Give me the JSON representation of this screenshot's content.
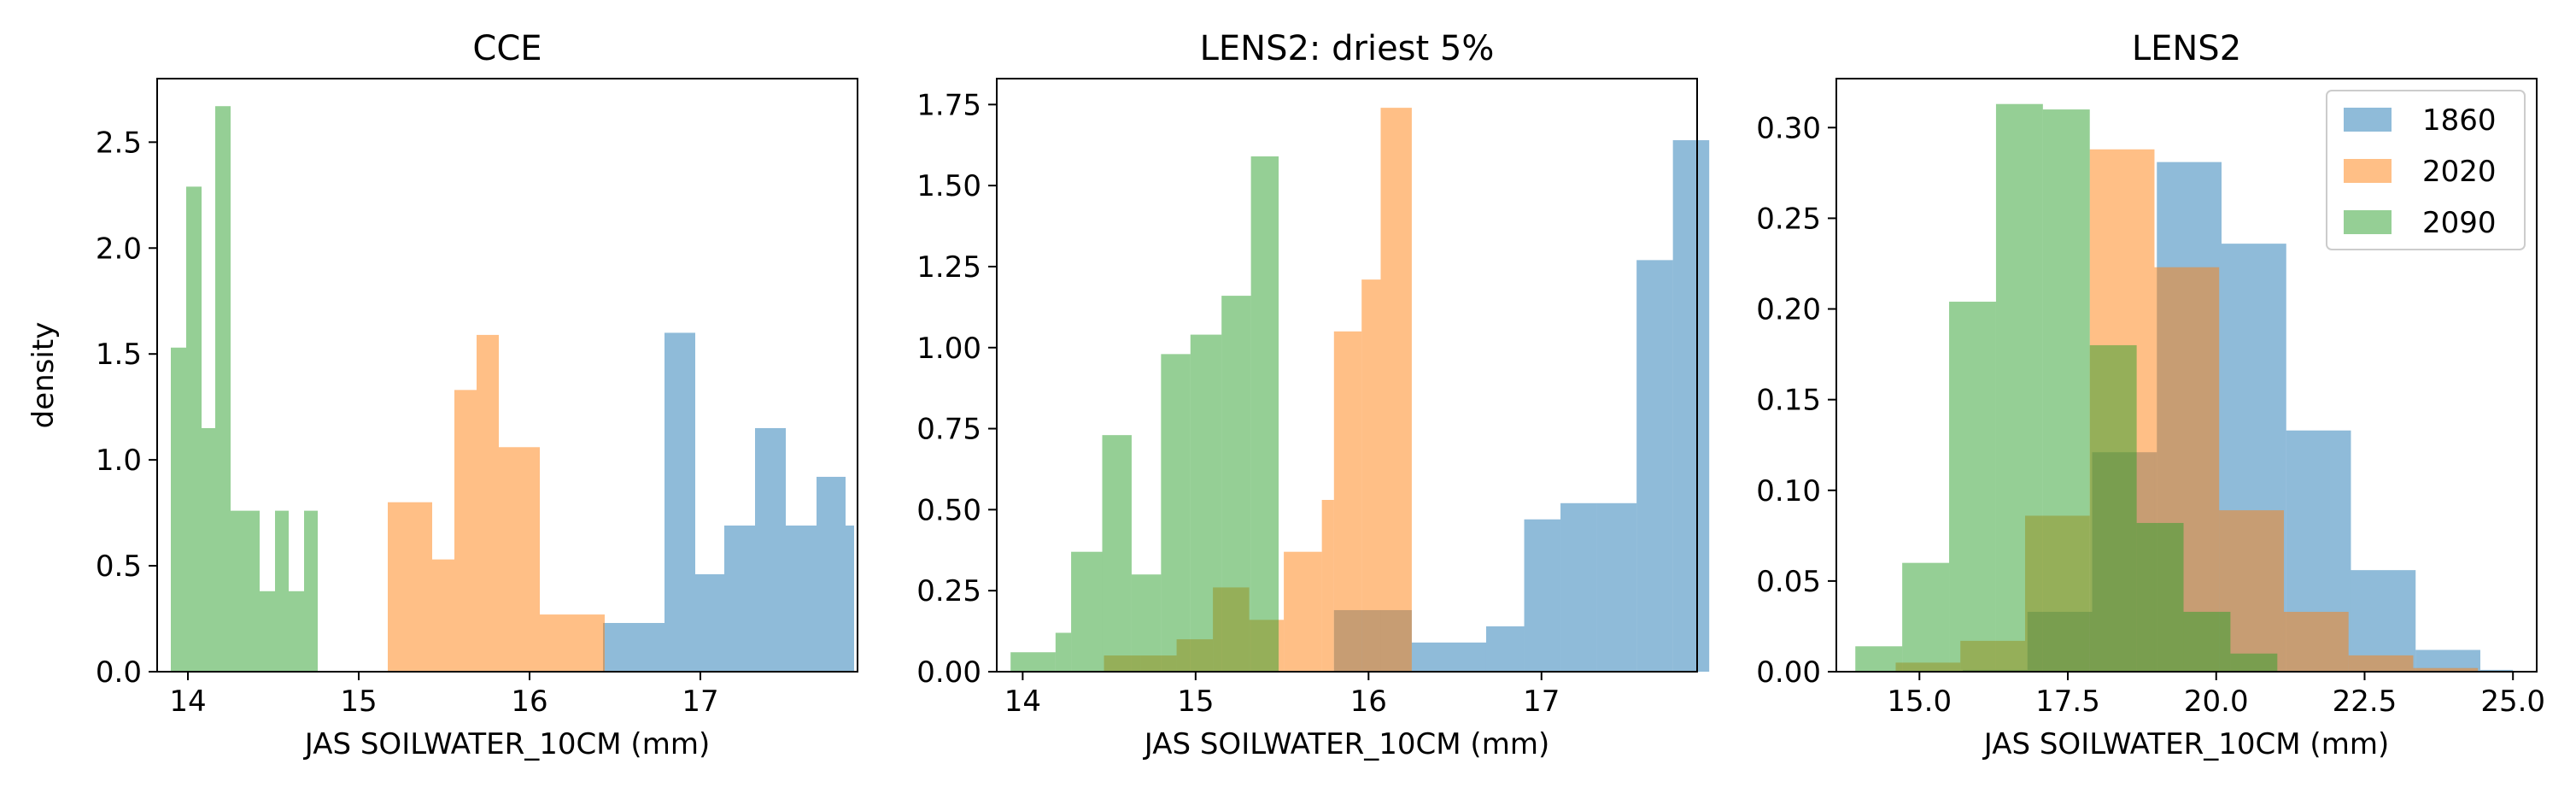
{
  "chart_data": [
    {
      "type": "bar",
      "title": "CCE",
      "xlabel": "JAS SOILWATER_10CM (mm)",
      "ylabel": "density",
      "xlim": [
        13.82,
        17.92
      ],
      "ylim": [
        0,
        2.8
      ],
      "xticks": [
        14,
        15,
        16,
        17
      ],
      "xtick_labels": [
        "14",
        "15",
        "16",
        "17"
      ],
      "yticks": [
        0,
        0.5,
        1.0,
        1.5,
        2.0,
        2.5
      ],
      "ytick_labels": [
        "0.0",
        "0.5",
        "1.0",
        "1.5",
        "2.0",
        "2.5"
      ],
      "legend": null,
      "series": [
        {
          "name": "1860",
          "color": "#1f77b4",
          "bins": [
            [
              16.43,
              16.61,
              0.23
            ],
            [
              16.61,
              16.79,
              0.23
            ],
            [
              16.79,
              16.97,
              1.6
            ],
            [
              16.97,
              17.14,
              0.46
            ],
            [
              17.14,
              17.32,
              0.69
            ],
            [
              17.32,
              17.5,
              1.15
            ],
            [
              17.5,
              17.68,
              0.69
            ],
            [
              17.68,
              17.85,
              0.92
            ],
            [
              17.85,
              17.9,
              0.69
            ]
          ]
        },
        {
          "name": "2020",
          "color": "#ff7f0e",
          "bins": [
            [
              15.17,
              15.43,
              0.8
            ],
            [
              15.43,
              15.56,
              0.53
            ],
            [
              15.56,
              15.69,
              1.33
            ],
            [
              15.69,
              15.82,
              1.59
            ],
            [
              15.82,
              16.06,
              1.06
            ],
            [
              16.06,
              16.44,
              0.27
            ]
          ]
        },
        {
          "name": "2090",
          "color": "#2ca02c",
          "bins": [
            [
              13.9,
              13.99,
              1.53
            ],
            [
              13.99,
              14.08,
              2.29
            ],
            [
              14.08,
              14.16,
              1.15
            ],
            [
              14.16,
              14.25,
              2.67
            ],
            [
              14.25,
              14.42,
              0.76
            ],
            [
              14.42,
              14.51,
              0.38
            ],
            [
              14.51,
              14.59,
              0.76
            ],
            [
              14.59,
              14.68,
              0.38
            ],
            [
              14.68,
              14.76,
              0.76
            ]
          ]
        }
      ]
    },
    {
      "type": "bar",
      "title": "LENS2: driest 5%",
      "xlabel": "JAS SOILWATER_10CM (mm)",
      "ylabel": "",
      "xlim": [
        13.85,
        17.9
      ],
      "ylim": [
        0,
        1.83
      ],
      "xticks": [
        14,
        15,
        16,
        17
      ],
      "xtick_labels": [
        "14",
        "15",
        "16",
        "17"
      ],
      "yticks": [
        0,
        0.25,
        0.5,
        0.75,
        1.0,
        1.25,
        1.5,
        1.75
      ],
      "ytick_labels": [
        "0.00",
        "0.25",
        "0.50",
        "0.75",
        "1.00",
        "1.25",
        "1.50",
        "1.75"
      ],
      "legend": null,
      "series": [
        {
          "name": "1860",
          "color": "#1f77b4",
          "bins": [
            [
              15.8,
              16.25,
              0.19
            ],
            [
              16.25,
              16.68,
              0.09
            ],
            [
              16.68,
              16.9,
              0.14
            ],
            [
              16.9,
              17.11,
              0.47
            ],
            [
              17.11,
              17.32,
              0.52
            ],
            [
              17.32,
              17.55,
              0.52
            ],
            [
              17.55,
              17.76,
              1.27
            ],
            [
              17.76,
              17.97,
              1.64
            ]
          ]
        },
        {
          "name": "2020",
          "color": "#ff7f0e",
          "bins": [
            [
              14.47,
              14.68,
              0.05
            ],
            [
              14.68,
              14.89,
              0.05
            ],
            [
              14.89,
              15.1,
              0.1
            ],
            [
              15.1,
              15.31,
              0.26
            ],
            [
              15.31,
              15.51,
              0.16
            ],
            [
              15.51,
              15.73,
              0.37
            ],
            [
              15.73,
              15.8,
              0.53
            ],
            [
              15.8,
              15.96,
              1.05
            ],
            [
              15.96,
              16.07,
              1.21
            ],
            [
              16.07,
              16.25,
              1.74
            ]
          ]
        },
        {
          "name": "2090",
          "color": "#2ca02c",
          "bins": [
            [
              13.93,
              14.19,
              0.06
            ],
            [
              14.19,
              14.28,
              0.12
            ],
            [
              14.28,
              14.46,
              0.37
            ],
            [
              14.46,
              14.63,
              0.73
            ],
            [
              14.63,
              14.8,
              0.3
            ],
            [
              14.8,
              14.97,
              0.98
            ],
            [
              14.97,
              15.15,
              1.04
            ],
            [
              15.15,
              15.32,
              1.16
            ],
            [
              15.32,
              15.48,
              1.59
            ]
          ]
        }
      ]
    },
    {
      "type": "bar",
      "title": "LENS2",
      "xlabel": "JAS SOILWATER_10CM (mm)",
      "ylabel": "",
      "xlim": [
        13.6,
        25.4
      ],
      "ylim": [
        0,
        0.327
      ],
      "xticks": [
        15.0,
        17.5,
        20.0,
        22.5,
        25.0
      ],
      "xtick_labels": [
        "15.0",
        "17.5",
        "20.0",
        "22.5",
        "25.0"
      ],
      "yticks": [
        0,
        0.05,
        0.1,
        0.15,
        0.2,
        0.25,
        0.3
      ],
      "ytick_labels": [
        "0.00",
        "0.05",
        "0.10",
        "0.15",
        "0.20",
        "0.25",
        "0.30"
      ],
      "legend": {
        "position": "top-right",
        "entries": [
          "1860",
          "2020",
          "2090"
        ]
      },
      "series": [
        {
          "name": "1860",
          "color": "#1f77b4",
          "bins": [
            [
              15.73,
              16.82,
              0.001
            ],
            [
              16.82,
              17.91,
              0.033
            ],
            [
              17.91,
              19.0,
              0.121
            ],
            [
              19.0,
              20.09,
              0.281
            ],
            [
              20.09,
              21.18,
              0.236
            ],
            [
              21.18,
              22.27,
              0.133
            ],
            [
              22.27,
              23.36,
              0.056
            ],
            [
              23.36,
              24.45,
              0.012
            ],
            [
              24.45,
              25.0,
              0.001
            ]
          ]
        },
        {
          "name": "2020",
          "color": "#ff7f0e",
          "bins": [
            [
              14.6,
              15.69,
              0.005
            ],
            [
              15.69,
              16.78,
              0.017
            ],
            [
              16.78,
              17.87,
              0.086
            ],
            [
              17.87,
              18.96,
              0.288
            ],
            [
              18.96,
              20.05,
              0.223
            ],
            [
              20.05,
              21.14,
              0.089
            ],
            [
              21.14,
              22.23,
              0.033
            ],
            [
              22.23,
              23.32,
              0.009
            ],
            [
              23.32,
              24.41,
              0.002
            ]
          ]
        },
        {
          "name": "2090",
          "color": "#2ca02c",
          "bins": [
            [
              13.92,
              14.71,
              0.014
            ],
            [
              14.71,
              15.5,
              0.06
            ],
            [
              15.5,
              16.29,
              0.204
            ],
            [
              16.29,
              17.08,
              0.313
            ],
            [
              17.08,
              17.87,
              0.31
            ],
            [
              17.87,
              18.66,
              0.18
            ],
            [
              18.66,
              19.45,
              0.082
            ],
            [
              19.45,
              20.24,
              0.033
            ],
            [
              20.24,
              21.03,
              0.01
            ]
          ]
        }
      ]
    }
  ]
}
